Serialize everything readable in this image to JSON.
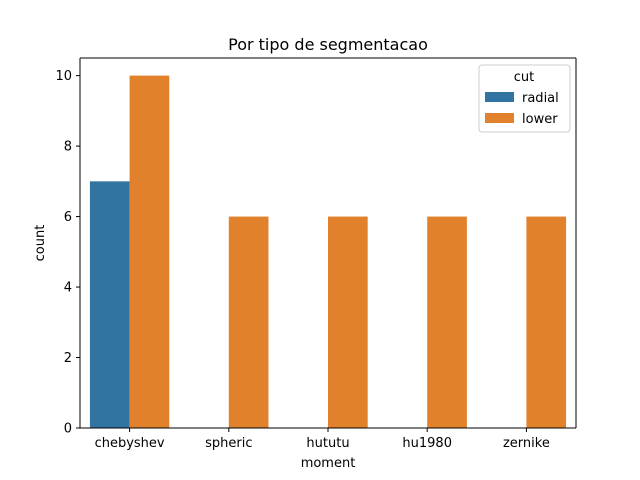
{
  "chart_data": {
    "type": "bar",
    "title": "Por tipo de segmentacao",
    "xlabel": "moment",
    "ylabel": "count",
    "categories": [
      "chebyshev",
      "spheric",
      "hututu",
      "hu1980",
      "zernike"
    ],
    "series": [
      {
        "name": "radial",
        "color": "#3274a1",
        "values": [
          7,
          0,
          0,
          0,
          0
        ]
      },
      {
        "name": "lower",
        "color": "#e1812c",
        "values": [
          10,
          6,
          6,
          6,
          6
        ]
      }
    ],
    "ylim": [
      0,
      10.5
    ],
    "yticks": [
      0,
      2,
      4,
      6,
      8,
      10
    ],
    "legend": {
      "title": "cut",
      "placement": "top-right"
    },
    "grid": false
  }
}
